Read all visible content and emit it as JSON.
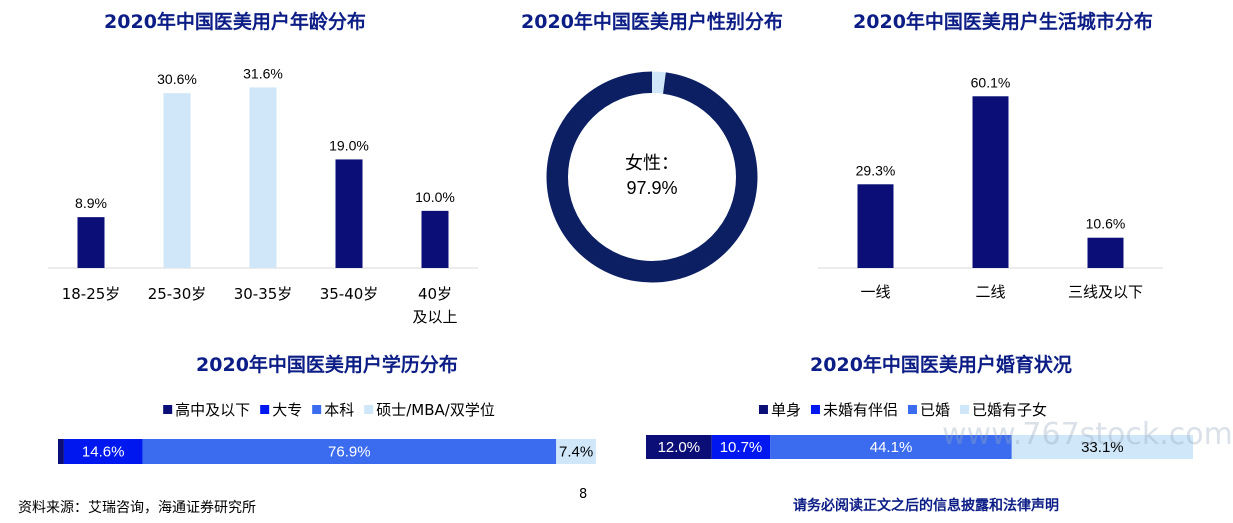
{
  "colors": {
    "title": "#0c1d86",
    "navy": "#0b0e77",
    "light_blue": "#cfe7f8",
    "bright_blue": "#0018f0",
    "medium_blue": "#3b6cf0",
    "donut_dark": "#0b1f62",
    "donut_light": "#cfe7f8"
  },
  "footer": {
    "source": "资料来源：艾瑞咨询，海通证券研究所",
    "page": "8",
    "disclaimer": "请务必阅读正文之后的信息披露和法律声明"
  },
  "watermark": "www.767stock.com",
  "chart_data": [
    {
      "id": "age",
      "type": "bar",
      "title": "2020年中国医美用户年龄分布",
      "categories": [
        "18-25岁",
        "25-30岁",
        "30-35岁",
        "35-40岁",
        "40岁及以上"
      ],
      "category_lines": [
        [
          "18-25岁"
        ],
        [
          "25-30岁"
        ],
        [
          "30-35岁"
        ],
        [
          "35-40岁"
        ],
        [
          "40岁",
          "及以上"
        ]
      ],
      "values": [
        8.9,
        30.6,
        31.6,
        19.0,
        10.0
      ],
      "labels": [
        "8.9%",
        "30.6%",
        "31.6%",
        "19.0%",
        "10.0%"
      ],
      "bar_colors": [
        "navy",
        "light_blue",
        "light_blue",
        "navy",
        "navy"
      ],
      "ylim": [
        0,
        35
      ]
    },
    {
      "id": "gender",
      "type": "pie",
      "title": "2020年中国医美用户性别分布",
      "slices": [
        {
          "name": "女性",
          "value": 97.9
        },
        {
          "value": 2.1
        }
      ],
      "center_label": "女性：",
      "center_value": "97.9%"
    },
    {
      "id": "city",
      "type": "bar",
      "title": "2020年中国医美用户生活城市分布",
      "categories": [
        "一线",
        "二线",
        "三线及以下"
      ],
      "values": [
        29.3,
        60.1,
        10.6
      ],
      "labels": [
        "29.3%",
        "60.1%",
        "10.6%"
      ],
      "ylim": [
        0,
        70
      ]
    },
    {
      "id": "education",
      "type": "bar",
      "orientation": "horizontal-stacked",
      "title": "2020年中国医美用户学历分布",
      "series": [
        {
          "name": "高中及以下",
          "value": 1.1,
          "label": ""
        },
        {
          "name": "大专",
          "value": 14.6,
          "label": "14.6%"
        },
        {
          "name": "本科",
          "value": 76.9,
          "label": "76.9%"
        },
        {
          "name": "硕士/MBA/双学位",
          "value": 7.4,
          "label": "7.4%"
        }
      ],
      "series_colors": [
        "navy",
        "bright_blue",
        "medium_blue",
        "light_blue"
      ]
    },
    {
      "id": "marital",
      "type": "bar",
      "orientation": "horizontal-stacked",
      "title": "2020年中国医美用户婚育状况",
      "series": [
        {
          "name": "单身",
          "value": 12.0,
          "label": "12.0%"
        },
        {
          "name": "未婚有伴侣",
          "value": 10.7,
          "label": "10.7%"
        },
        {
          "name": "已婚",
          "value": 44.1,
          "label": "44.1%"
        },
        {
          "name": "已婚有子女",
          "value": 33.1,
          "label": "33.1%"
        }
      ],
      "series_colors": [
        "navy",
        "bright_blue",
        "medium_blue",
        "light_blue"
      ]
    }
  ]
}
